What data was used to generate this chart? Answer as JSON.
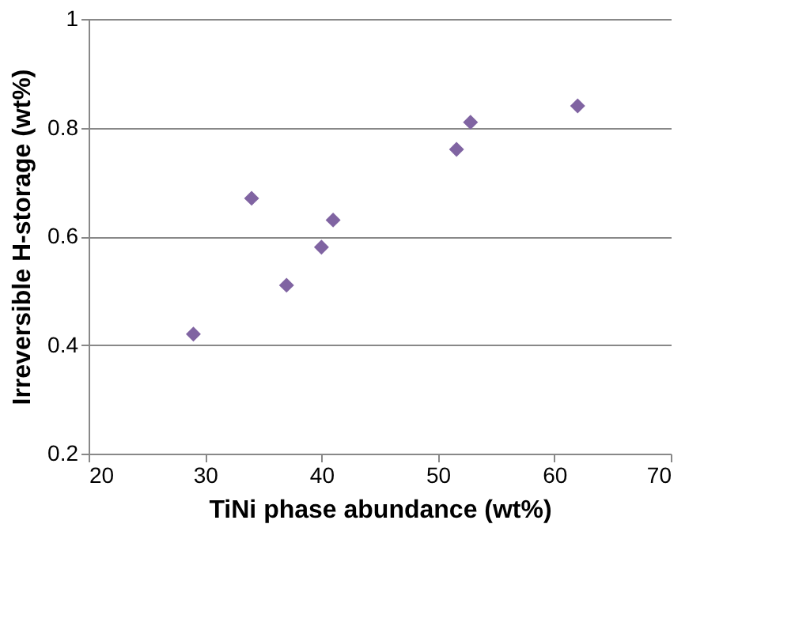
{
  "chart_data": {
    "type": "scatter",
    "xlabel": "TiNi phase abundance  (wt%)",
    "ylabel": "Irreversible H-storage (wt%)",
    "x": [
      29,
      34,
      37,
      40,
      41,
      51.6,
      52.8,
      62
    ],
    "series": [
      {
        "color": "#8064a2",
        "values": [
          0.42,
          0.67,
          0.51,
          0.58,
          0.63,
          0.76,
          0.81,
          0.84
        ]
      }
    ],
    "xlim": [
      20,
      70
    ],
    "xticks": [
      20,
      30,
      40,
      50,
      60,
      70
    ],
    "ylim": [
      0.2,
      1
    ],
    "yticks": [
      0.2,
      0.4,
      0.6,
      0.8,
      1
    ],
    "grid": "y",
    "marker": "diamond"
  }
}
